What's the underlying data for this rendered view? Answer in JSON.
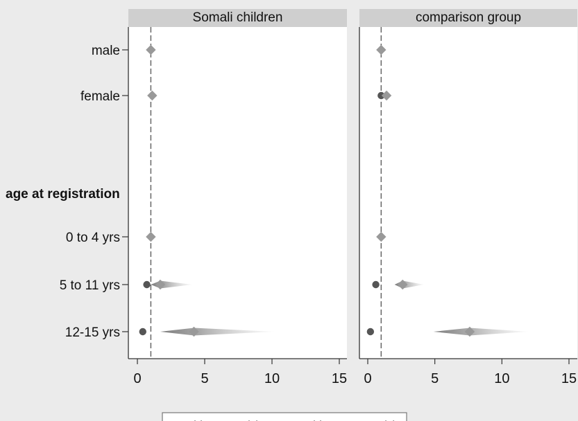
{
  "chart_data": {
    "type": "scatter",
    "panels": [
      "Somali children",
      "comparison group"
    ],
    "categories": [
      "male",
      "female",
      "age at registration",
      "0 to 4 yrs",
      "5 to 11 yrs",
      "12-15 yrs"
    ],
    "xlim": [
      0,
      15
    ],
    "x_ticks": [
      0,
      5,
      10,
      15
    ],
    "reference_line_x": 1,
    "series": [
      {
        "name": "with parent(s)",
        "marker": "circle",
        "color": "#555555",
        "values": [
          [
            null,
            null,
            null,
            null,
            0.7,
            0.4
          ],
          [
            null,
            1.0,
            null,
            null,
            0.6,
            0.2
          ]
        ]
      },
      {
        "name": "without parent(s)",
        "marker": "diamond",
        "color": "#999999",
        "values": [
          [
            1.0,
            1.1,
            null,
            1.0,
            1.7,
            4.2
          ],
          [
            1.0,
            1.4,
            null,
            1.0,
            2.6,
            7.6
          ]
        ],
        "intervals": [
          [
            null,
            null,
            null,
            null,
            [
              1.0,
              4.1
            ],
            [
              1.7,
              10.2
            ]
          ],
          [
            null,
            null,
            null,
            null,
            [
              2.0,
              4.2
            ],
            [
              4.9,
              12.0
            ]
          ]
        ]
      }
    ],
    "legend": {
      "placement": "bottom",
      "entries": [
        "with parent(s)",
        "without parent(s)"
      ]
    }
  }
}
